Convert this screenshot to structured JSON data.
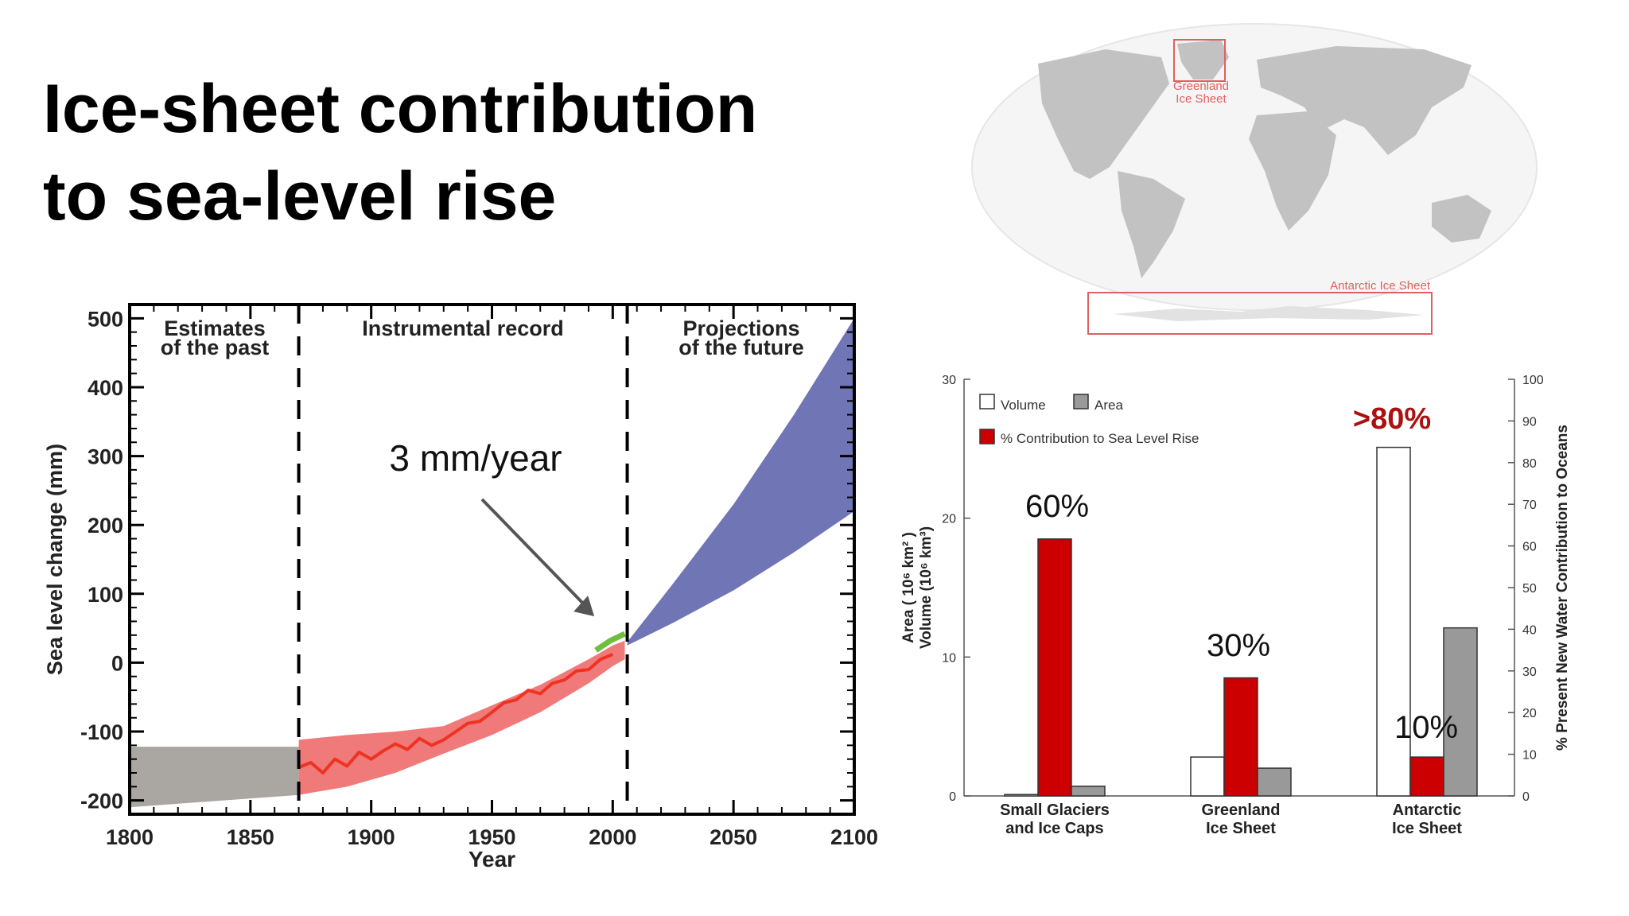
{
  "slide": {
    "title_line1": "Ice-sheet contribution",
    "title_line2": "to sea-level rise"
  },
  "map": {
    "greenland_label": "Greenland Ice Sheet",
    "antarctic_label": "Antarctic Ice Sheet"
  },
  "chart_data": [
    {
      "type": "area",
      "xlabel": "Year",
      "ylabel": "Sea level change (mm)",
      "xlim": [
        1800,
        2100
      ],
      "ylim": [
        -220,
        520
      ],
      "x_ticks": [
        1800,
        1850,
        1900,
        1950,
        2000,
        2050,
        2100
      ],
      "y_ticks": [
        -200,
        -100,
        0,
        100,
        200,
        300,
        400,
        500
      ],
      "section_labels": [
        "Estimates of the past",
        "Instrumental record",
        "Projections of the future"
      ],
      "section_boundaries": [
        1870,
        2006
      ],
      "annotation": "3 mm/year",
      "annotation_target": [
        1995,
        35
      ],
      "series": [
        {
          "color": "#aaa6a2",
          "x": [
            1800,
            1870
          ],
          "upper": [
            -122,
            -122
          ],
          "lower": [
            -210,
            -192
          ]
        },
        {
          "color": "#f07a7a",
          "x": [
            1870,
            1890,
            1910,
            1930,
            1950,
            1970,
            1990,
            2000,
            2005
          ],
          "upper": [
            -112,
            -105,
            -100,
            -92,
            -62,
            -32,
            5,
            25,
            32
          ],
          "lower": [
            -192,
            -180,
            -160,
            -132,
            -105,
            -72,
            -30,
            -5,
            5
          ]
        },
        {
          "color": "#ee3322",
          "x": [
            1870,
            1875,
            1880,
            1885,
            1890,
            1895,
            1900,
            1905,
            1910,
            1915,
            1920,
            1925,
            1930,
            1935,
            1940,
            1945,
            1950,
            1955,
            1960,
            1965,
            1970,
            1975,
            1980,
            1985,
            1990,
            1995,
            2000
          ],
          "y": [
            -152,
            -145,
            -160,
            -140,
            -150,
            -130,
            -140,
            -128,
            -118,
            -126,
            -110,
            -120,
            -112,
            -100,
            -88,
            -85,
            -72,
            -58,
            -54,
            -40,
            -45,
            -30,
            -25,
            -12,
            -10,
            5,
            12
          ]
        },
        {
          "color": "#6fbf3f",
          "x": [
            1993,
            1996,
            1999,
            2002,
            2005
          ],
          "y": [
            18,
            25,
            32,
            37,
            42
          ]
        },
        {
          "color": "#7075b5",
          "x": [
            2006,
            2025,
            2050,
            2075,
            2100
          ],
          "upper": [
            30,
            115,
            230,
            360,
            500
          ],
          "lower": [
            25,
            58,
            105,
            160,
            220
          ]
        }
      ]
    },
    {
      "type": "bar",
      "categories": [
        "Small Glaciers and Ice Caps",
        "Greenland Ice Sheet",
        "Antarctic Ice Sheet"
      ],
      "category_lines": [
        [
          "Small Glaciers",
          "and Ice Caps"
        ],
        [
          "Greenland",
          "Ice Sheet"
        ],
        [
          "Antarctic",
          "Ice Sheet"
        ]
      ],
      "ylabel_left_line1": "Area ( 10⁶ km² )",
      "ylabel_left_line2": "Volume (10⁶ km³)",
      "ylabel_right": "% Present New Water Contribution to Oceans",
      "ylim_left": [
        0,
        30
      ],
      "ylim_right": [
        0,
        100
      ],
      "left_ticks": [
        0,
        10,
        20,
        30
      ],
      "right_ticks": [
        0,
        10,
        20,
        30,
        40,
        50,
        60,
        70,
        80,
        90,
        100
      ],
      "legend": [
        "Volume",
        "Area",
        "% Contribution to Sea Level Rise"
      ],
      "legend_position": "top-left",
      "series": [
        {
          "name": "Volume",
          "color": "#ffffff",
          "values": [
            0.1,
            2.8,
            25.1
          ]
        },
        {
          "name": "% Contribution to Sea Level Rise",
          "color": "#cc0000",
          "values": [
            18.5,
            8.5,
            2.8
          ]
        },
        {
          "name": "Area",
          "color": "#999999",
          "values": [
            0.7,
            2.0,
            12.1
          ]
        }
      ],
      "annotations": [
        "60%",
        "30%",
        "10%",
        ">80%"
      ],
      "annotation_color_highlight": "#aa1111"
    }
  ]
}
